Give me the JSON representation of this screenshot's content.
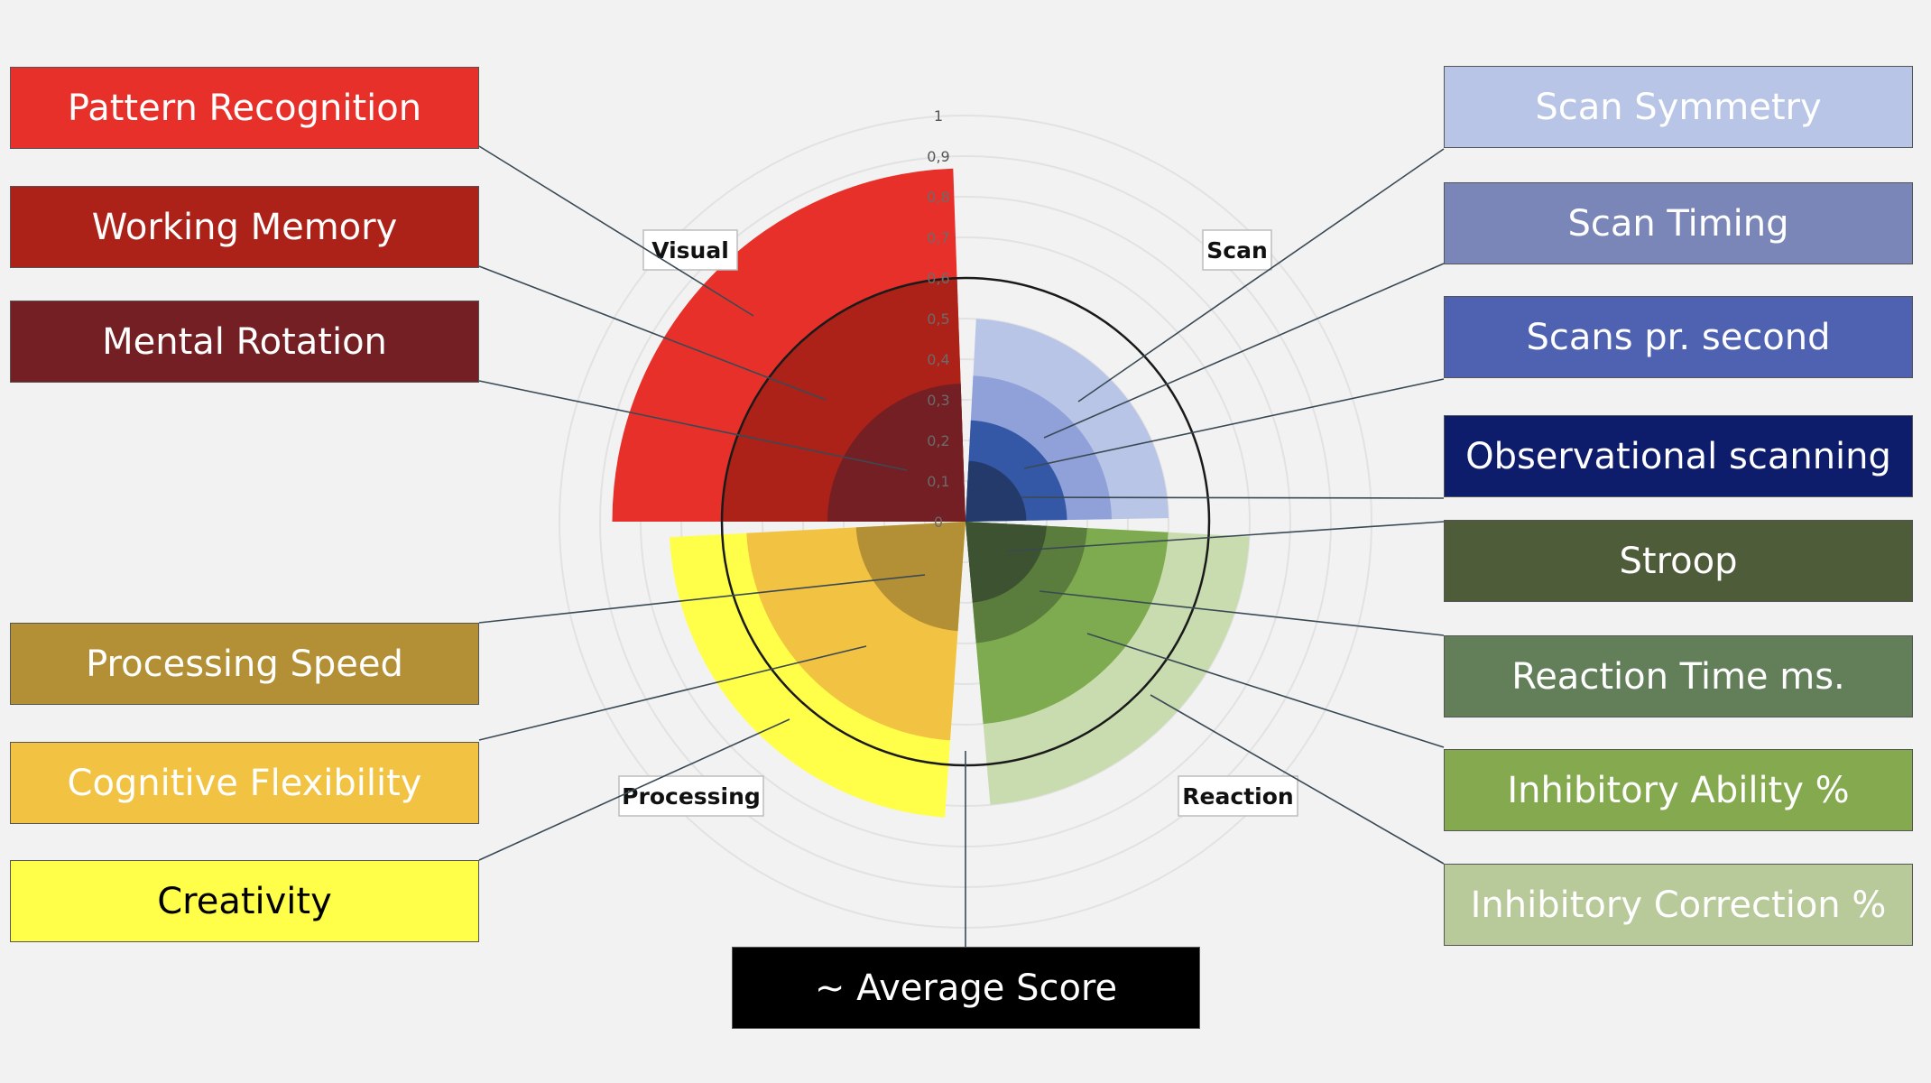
{
  "chart_data": {
    "type": "radial-bar",
    "scale_ticks": [
      "0",
      "0,1",
      "0,2",
      "0,3",
      "0,4",
      "0,5",
      "0,6",
      "0,7",
      "0,8",
      "0,9",
      "1"
    ],
    "average_ring": 0.6,
    "groups": [
      {
        "key": "visual",
        "label": "Visual",
        "series": [
          {
            "name": "Pattern Recognition",
            "value": 0.87,
            "color": "#e8302a",
            "text_color": "#ffffff"
          },
          {
            "name": "Working Memory",
            "value": 0.6,
            "color": "#ad2218",
            "text_color": "#ffffff"
          },
          {
            "name": "Mental Rotation",
            "value": 0.34,
            "color": "#731f23",
            "text_color": "#ffffff"
          }
        ]
      },
      {
        "key": "scan",
        "label": "Scan",
        "series": [
          {
            "name": "Scan Symmetry",
            "value": 0.5,
            "color": "#b8c5e6",
            "text_color": "#ffffff"
          },
          {
            "name": "Scan Timing",
            "value": 0.36,
            "color": "#8fa1d8",
            "text_color": "#ffffff"
          },
          {
            "name": "Scans pr. second",
            "value": 0.25,
            "color": "#3457a6",
            "text_color": "#ffffff"
          },
          {
            "name": "Observational scanning",
            "value": 0.15,
            "color": "#233a6a",
            "text_color": "#ffffff"
          }
        ]
      },
      {
        "key": "reaction",
        "label": "Reaction",
        "series": [
          {
            "name": "Inhibitory Correction %",
            "value": 0.7,
            "color": "#c9dcb0",
            "text_color": "#ffffff"
          },
          {
            "name": "Inhibitory Ability %",
            "value": 0.5,
            "color": "#7fab50",
            "text_color": "#ffffff"
          },
          {
            "name": "Reaction Time ms.",
            "value": 0.3,
            "color": "#5a7c3c",
            "text_color": "#ffffff"
          },
          {
            "name": "Stroop",
            "value": 0.2,
            "color": "#3d5230",
            "text_color": "#ffffff"
          }
        ]
      },
      {
        "key": "processing",
        "label": "Processing",
        "series": [
          {
            "name": "Creativity",
            "value": 0.73,
            "color": "#ffff4a",
            "text_color": "#000000"
          },
          {
            "name": "Cognitive Flexibility",
            "value": 0.54,
            "color": "#f2c242",
            "text_color": "#ffffff"
          },
          {
            "name": "Processing Speed",
            "value": 0.27,
            "color": "#b39035",
            "text_color": "#ffffff"
          }
        ]
      }
    ]
  },
  "legend": {
    "pattern_recognition": "Pattern Recognition",
    "working_memory": "Working Memory",
    "mental_rotation": "Mental Rotation",
    "processing_speed": "Processing Speed",
    "cognitive_flexibility": "Cognitive Flexibility",
    "creativity": "Creativity",
    "scan_symmetry": "Scan Symmetry",
    "scan_timing": "Scan Timing",
    "scans_per_second": "Scans pr. second",
    "observational_scanning": "Observational scanning",
    "stroop": "Stroop",
    "reaction_time": "Reaction Time ms.",
    "inhibitory_ability": "Inhibitory Ability %",
    "inhibitory_correction": "Inhibitory Correction %",
    "average_score": "~ Average Score"
  },
  "colors": {
    "pattern_recognition": "#e8302a",
    "working_memory": "#ad2218",
    "mental_rotation": "#731f23",
    "processing_speed": "#b39035",
    "cognitive_flexibility": "#f2c242",
    "creativity": "#ffff4a",
    "scan_symmetry": "#b8c5e6",
    "scan_timing": "#7a86b8",
    "scans_per_second": "#4f62b2",
    "observational_scanning": "#0d1c6b",
    "stroop": "#4f5c3a",
    "reaction_time": "#637f5a",
    "inhibitory_ability": "#84a94f",
    "inhibitory_correction": "#b8c99a",
    "average_score": "#000000"
  }
}
